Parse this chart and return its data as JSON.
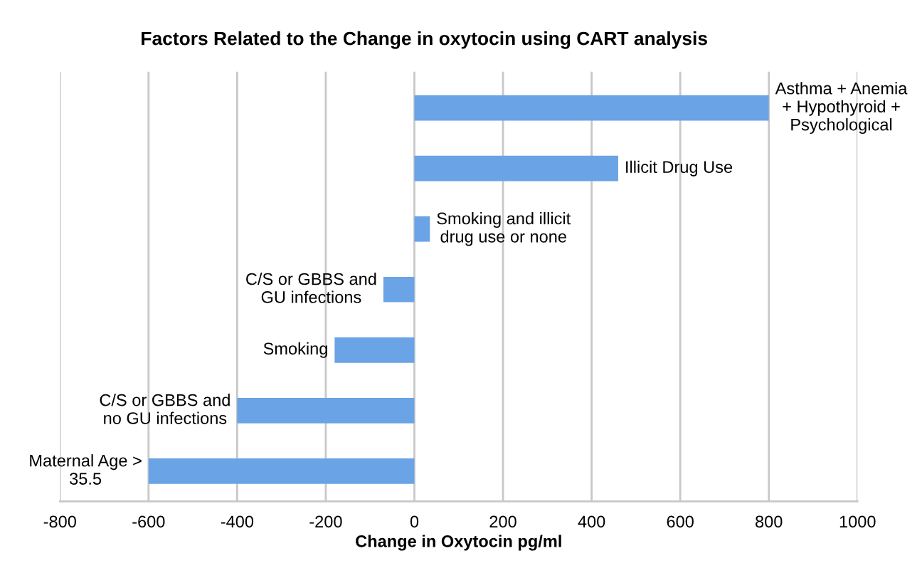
{
  "chart_data": {
    "type": "bar",
    "orientation": "horizontal",
    "title": "Factors Related to the Change in oxytocin using CART analysis",
    "xlabel": "Change in Oxytocin pg/ml",
    "categories": [
      "Asthma + Anemia\n+ Hypothyroid +\nPsychological",
      "Illicit Drug Use",
      "Smoking and illicit\ndrug use or none",
      "C/S or GBBS and\nGU infections",
      "Smoking",
      "C/S or GBBS and\nno GU infections",
      "Maternal Age >\n35.5"
    ],
    "values": [
      800,
      460,
      35,
      -70,
      -180,
      -400,
      -600
    ],
    "color": "#6aa3e6",
    "xlim": [
      -800,
      1000
    ],
    "xticks": [
      -800,
      -600,
      -400,
      -200,
      0,
      200,
      400,
      600,
      800,
      1000
    ],
    "grid": "x",
    "tick_labels": "x",
    "legend": false
  }
}
